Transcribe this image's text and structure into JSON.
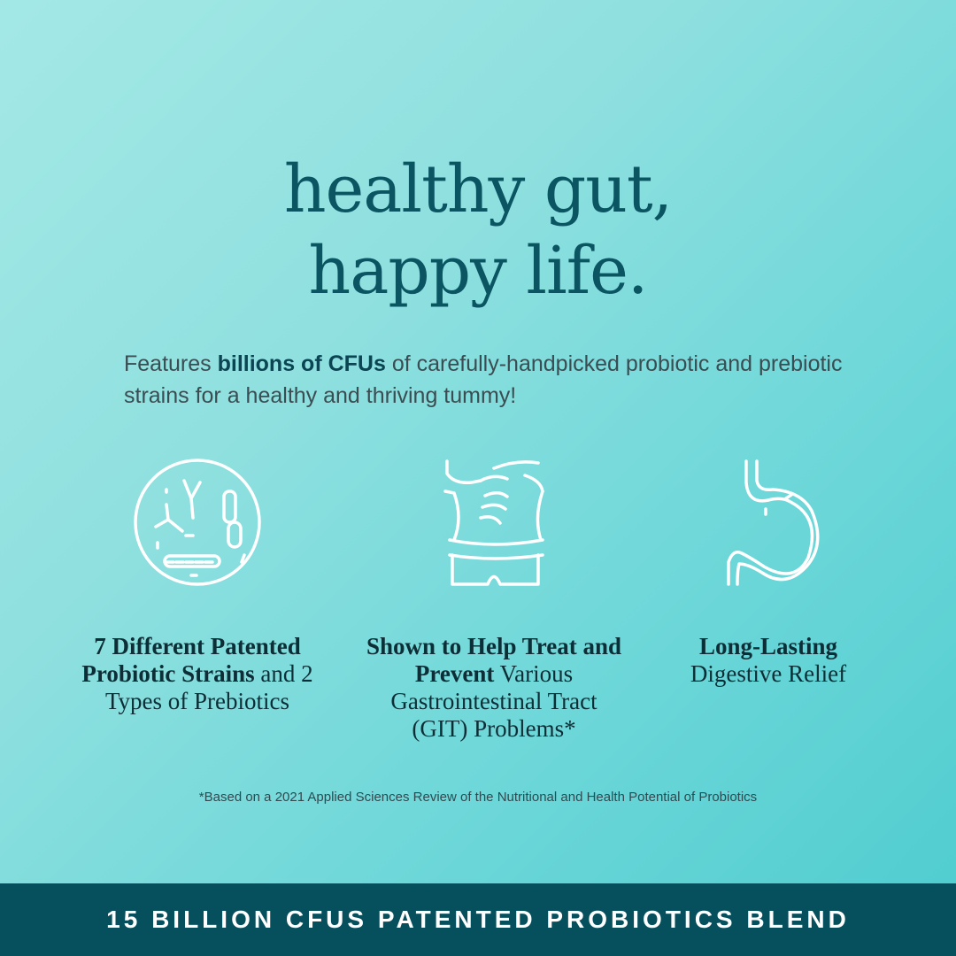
{
  "headline": {
    "line1": "healthy gut,",
    "line2": "happy life."
  },
  "subtitle": {
    "pre": "Features ",
    "bold": "billions of CFUs",
    "post": " of carefully-handpicked probiotic and prebiotic strains for a healthy and thriving tummy!"
  },
  "features": [
    {
      "icon": "microbes-icon",
      "bold": "7 Different Patented Probiotic Strains",
      "rest": " and 2 Types of Prebiotics"
    },
    {
      "icon": "tummy-hands-icon",
      "bold": "Shown to Help Treat and Prevent",
      "rest": " Various Gastrointestinal Tract (GIT) Problems*"
    },
    {
      "icon": "stomach-icon",
      "bold": "Long-Lasting",
      "rest": " Digestive Relief"
    }
  ],
  "footnote": "*Based on a 2021 Applied Sciences Review of the Nutritional and Health Potential of Probiotics",
  "banner": "15 BILLION CFUS PATENTED PROBIOTICS BLEND",
  "colors": {
    "headline": "#0b5563",
    "banner": "#06505e",
    "background_top": "#a3e8e6",
    "background_bottom": "#4ecccf"
  }
}
